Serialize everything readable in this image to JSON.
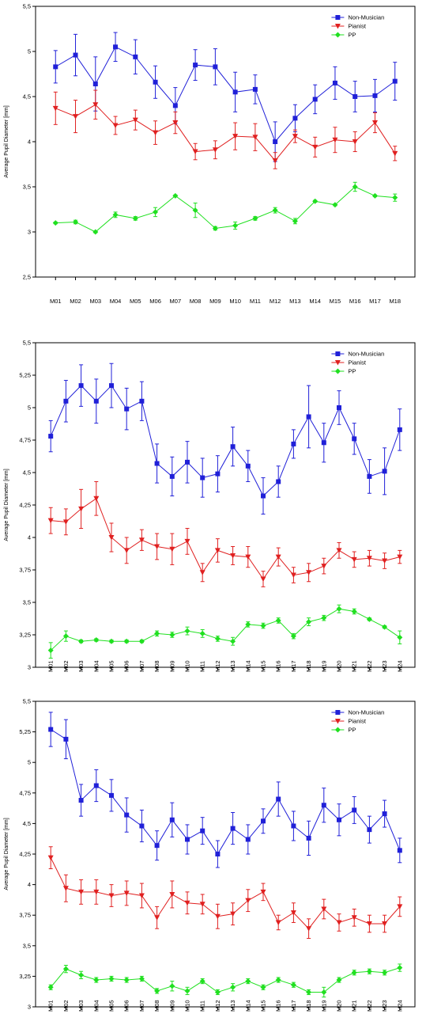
{
  "chart_data": [
    {
      "type": "line",
      "title": "",
      "xlabel": "",
      "ylabel": "Average Pupil Diameter [mm]",
      "ylim": [
        2.5,
        5.5
      ],
      "yticks": [
        2.5,
        3,
        3.5,
        4,
        4.5,
        5,
        5.5
      ],
      "ytick_labels": [
        "2,5",
        "3",
        "3,5",
        "4",
        "4,5",
        "5",
        "5,5"
      ],
      "categories": [
        "M01",
        "M02",
        "M03",
        "M04",
        "M05",
        "M06",
        "M07",
        "M08",
        "M09",
        "M10",
        "M11",
        "M12",
        "M13",
        "M14",
        "M15",
        "M16",
        "M17",
        "M18"
      ],
      "legend_position": "top-right",
      "grid": false,
      "series": [
        {
          "name": "Non-Musician",
          "color": "#2020d8",
          "marker": "square",
          "values": [
            4.83,
            4.96,
            4.64,
            5.05,
            4.94,
            4.66,
            4.4,
            4.85,
            4.83,
            4.55,
            4.58,
            4.0,
            4.26,
            4.47,
            4.65,
            4.5,
            4.51,
            4.67
          ],
          "errors": [
            0.18,
            0.23,
            0.3,
            0.16,
            0.19,
            0.18,
            0.2,
            0.17,
            0.2,
            0.22,
            0.16,
            0.22,
            0.15,
            0.16,
            0.18,
            0.17,
            0.18,
            0.21
          ]
        },
        {
          "name": "Pianist",
          "color": "#e02020",
          "marker": "triangle-down",
          "values": [
            4.37,
            4.28,
            4.41,
            4.18,
            4.24,
            4.1,
            4.21,
            3.89,
            3.91,
            4.06,
            4.05,
            3.79,
            4.06,
            3.94,
            4.02,
            4.0,
            4.21,
            3.87
          ],
          "errors": [
            0.18,
            0.18,
            0.16,
            0.1,
            0.11,
            0.13,
            0.12,
            0.09,
            0.1,
            0.15,
            0.15,
            0.09,
            0.07,
            0.11,
            0.14,
            0.11,
            0.11,
            0.08
          ]
        },
        {
          "name": "PP",
          "color": "#20e020",
          "marker": "diamond",
          "values": [
            3.1,
            3.11,
            3.0,
            3.19,
            3.15,
            3.22,
            3.4,
            3.24,
            3.04,
            3.07,
            3.15,
            3.24,
            3.12,
            3.34,
            3.3,
            3.5,
            3.4,
            3.38
          ],
          "errors": [
            0.01,
            0.02,
            0.01,
            0.03,
            0.02,
            0.05,
            0.01,
            0.08,
            0.02,
            0.04,
            0.02,
            0.03,
            0.03,
            0.01,
            0.01,
            0.05,
            0.01,
            0.04
          ]
        }
      ]
    },
    {
      "type": "line",
      "title": "",
      "xlabel": "",
      "ylabel": "Average Pupil Diameter [mm]",
      "ylim": [
        3,
        5.5
      ],
      "yticks": [
        3,
        3.25,
        3.5,
        3.75,
        4,
        4.25,
        4.5,
        4.75,
        5,
        5.25,
        5.5
      ],
      "ytick_labels": [
        "3",
        "3,25",
        "3,5",
        "3,75",
        "4",
        "4,25",
        "4,5",
        "4,75",
        "5",
        "5,25",
        "5,5"
      ],
      "categories": [
        "M01",
        "M02",
        "M03",
        "M04",
        "M05",
        "M06",
        "M07",
        "M08",
        "M09",
        "M10",
        "M11",
        "M12",
        "M13",
        "M14",
        "M15",
        "M16",
        "M17",
        "M18",
        "M19",
        "M20",
        "M21",
        "M22",
        "M23",
        "M24"
      ],
      "legend_position": "top-right",
      "grid": false,
      "series": [
        {
          "name": "Non-Musician",
          "color": "#2020d8",
          "marker": "square",
          "values": [
            4.78,
            5.05,
            5.17,
            5.05,
            5.17,
            4.99,
            5.05,
            4.57,
            4.47,
            4.58,
            4.46,
            4.49,
            4.7,
            4.55,
            4.32,
            4.43,
            4.72,
            4.93,
            4.73,
            5.0,
            4.76,
            4.47,
            4.51,
            4.83
          ],
          "errors": [
            0.12,
            0.16,
            0.16,
            0.17,
            0.17,
            0.16,
            0.15,
            0.15,
            0.15,
            0.16,
            0.15,
            0.14,
            0.15,
            0.12,
            0.14,
            0.12,
            0.11,
            0.24,
            0.15,
            0.13,
            0.12,
            0.13,
            0.18,
            0.16
          ]
        },
        {
          "name": "Pianist",
          "color": "#e02020",
          "marker": "triangle-down",
          "values": [
            4.13,
            4.12,
            4.22,
            4.3,
            4.0,
            3.9,
            3.98,
            3.93,
            3.91,
            3.97,
            3.73,
            3.9,
            3.86,
            3.85,
            3.68,
            3.85,
            3.71,
            3.73,
            3.78,
            3.9,
            3.83,
            3.84,
            3.82,
            3.85
          ],
          "errors": [
            0.1,
            0.1,
            0.15,
            0.13,
            0.11,
            0.1,
            0.08,
            0.1,
            0.12,
            0.1,
            0.07,
            0.09,
            0.07,
            0.08,
            0.06,
            0.07,
            0.06,
            0.07,
            0.06,
            0.06,
            0.06,
            0.06,
            0.06,
            0.05
          ]
        },
        {
          "name": "PP",
          "color": "#20e020",
          "marker": "diamond",
          "values": [
            3.13,
            3.24,
            3.2,
            3.21,
            3.2,
            3.2,
            3.2,
            3.26,
            3.25,
            3.28,
            3.26,
            3.22,
            3.2,
            3.33,
            3.32,
            3.36,
            3.24,
            3.35,
            3.38,
            3.45,
            3.43,
            3.37,
            3.31,
            3.23
          ],
          "errors": [
            0.06,
            0.04,
            0.01,
            0.01,
            0.01,
            0.01,
            0.01,
            0.02,
            0.02,
            0.03,
            0.03,
            0.02,
            0.03,
            0.02,
            0.02,
            0.02,
            0.02,
            0.03,
            0.02,
            0.03,
            0.02,
            0.01,
            0.01,
            0.05
          ]
        }
      ]
    },
    {
      "type": "line",
      "title": "",
      "xlabel": "",
      "ylabel": "Average Pupil Diameter [mm]",
      "ylim": [
        3,
        5.5
      ],
      "yticks": [
        3,
        3.25,
        3.5,
        3.75,
        4,
        4.25,
        4.5,
        4.75,
        5,
        5.25,
        5.5
      ],
      "ytick_labels": [
        "3",
        "3,25",
        "3,5",
        "3,75",
        "4",
        "4,25",
        "4,5",
        "4,75",
        "5",
        "5,25",
        "5,5"
      ],
      "categories": [
        "M01",
        "M02",
        "M03",
        "M04",
        "M05",
        "M06",
        "M07",
        "M08",
        "M09",
        "M10",
        "M11",
        "M12",
        "M13",
        "M14",
        "M15",
        "M16",
        "M17",
        "M18",
        "M19",
        "M20",
        "M21",
        "M22",
        "M23",
        "M24"
      ],
      "legend_position": "top-right",
      "grid": false,
      "series": [
        {
          "name": "Non-Musician",
          "color": "#2020d8",
          "marker": "square",
          "values": [
            5.27,
            5.19,
            4.69,
            4.81,
            4.73,
            4.57,
            4.48,
            4.32,
            4.53,
            4.37,
            4.44,
            4.25,
            4.46,
            4.37,
            4.52,
            4.7,
            4.48,
            4.38,
            4.65,
            4.53,
            4.61,
            4.45,
            4.58,
            4.28
          ],
          "errors": [
            0.14,
            0.16,
            0.13,
            0.13,
            0.13,
            0.14,
            0.13,
            0.12,
            0.14,
            0.12,
            0.11,
            0.11,
            0.13,
            0.12,
            0.1,
            0.14,
            0.12,
            0.14,
            0.14,
            0.13,
            0.11,
            0.11,
            0.11,
            0.1
          ]
        },
        {
          "name": "Pianist",
          "color": "#e02020",
          "marker": "triangle-down",
          "values": [
            4.22,
            3.97,
            3.94,
            3.94,
            3.91,
            3.93,
            3.91,
            3.73,
            3.92,
            3.85,
            3.84,
            3.74,
            3.76,
            3.87,
            3.94,
            3.69,
            3.77,
            3.64,
            3.8,
            3.69,
            3.73,
            3.68,
            3.68,
            3.82
          ],
          "errors": [
            0.09,
            0.11,
            0.1,
            0.1,
            0.09,
            0.1,
            0.1,
            0.09,
            0.11,
            0.09,
            0.08,
            0.1,
            0.09,
            0.09,
            0.07,
            0.06,
            0.08,
            0.08,
            0.08,
            0.07,
            0.07,
            0.07,
            0.07,
            0.08
          ]
        },
        {
          "name": "PP",
          "color": "#20e020",
          "marker": "diamond",
          "values": [
            3.16,
            3.31,
            3.26,
            3.22,
            3.23,
            3.22,
            3.23,
            3.13,
            3.17,
            3.13,
            3.21,
            3.12,
            3.16,
            3.21,
            3.16,
            3.22,
            3.18,
            3.12,
            3.12,
            3.22,
            3.28,
            3.29,
            3.28,
            3.32
          ],
          "errors": [
            0.02,
            0.03,
            0.03,
            0.02,
            0.02,
            0.02,
            0.02,
            0.02,
            0.04,
            0.03,
            0.02,
            0.02,
            0.03,
            0.02,
            0.02,
            0.02,
            0.02,
            0.02,
            0.04,
            0.02,
            0.02,
            0.02,
            0.02,
            0.03
          ]
        }
      ]
    }
  ]
}
